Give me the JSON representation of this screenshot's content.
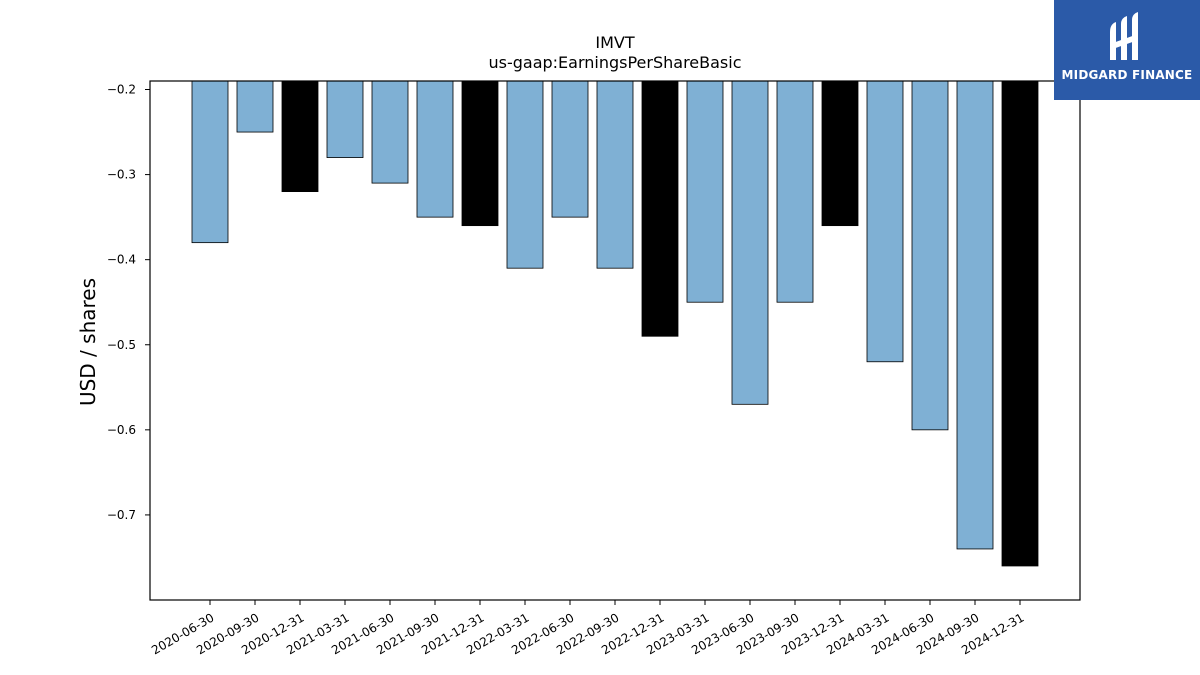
{
  "brand": {
    "name": "MIDGARD FINANCE",
    "bg_color": "#2b5aa8"
  },
  "chart_data": {
    "type": "bar",
    "title": "IMVT",
    "subtitle": "us-gaap:EarningsPerShareBasic",
    "xlabel": "",
    "ylabel": "USD / shares",
    "categories": [
      "2020-06-30",
      "2020-09-30",
      "2020-12-31",
      "2021-03-31",
      "2021-06-30",
      "2021-09-30",
      "2021-12-31",
      "2022-03-31",
      "2022-06-30",
      "2022-09-30",
      "2022-12-31",
      "2023-03-31",
      "2023-06-30",
      "2023-09-30",
      "2023-12-31",
      "2024-03-31",
      "2024-06-30",
      "2024-09-30",
      "2024-12-31"
    ],
    "values": [
      -0.38,
      -0.25,
      -0.32,
      -0.28,
      -0.31,
      -0.35,
      -0.36,
      -0.41,
      -0.35,
      -0.41,
      -0.49,
      -0.45,
      -0.57,
      -0.45,
      -0.36,
      -0.52,
      -0.6,
      -0.74,
      -0.76
    ],
    "highlight": [
      false,
      false,
      true,
      false,
      false,
      false,
      true,
      false,
      false,
      false,
      true,
      false,
      false,
      false,
      true,
      false,
      false,
      false,
      true
    ],
    "colors": {
      "normal": "#7fb0d4",
      "highlight": "#000000",
      "edge": "#000000"
    },
    "ylim": [
      -0.8,
      -0.19
    ],
    "yticks": [
      -0.2,
      -0.3,
      -0.4,
      -0.5,
      -0.6,
      -0.7
    ],
    "ytick_labels": [
      "−0.2",
      "−0.3",
      "−0.4",
      "−0.5",
      "−0.6",
      "−0.7"
    ],
    "grid": false,
    "legend": "none"
  }
}
